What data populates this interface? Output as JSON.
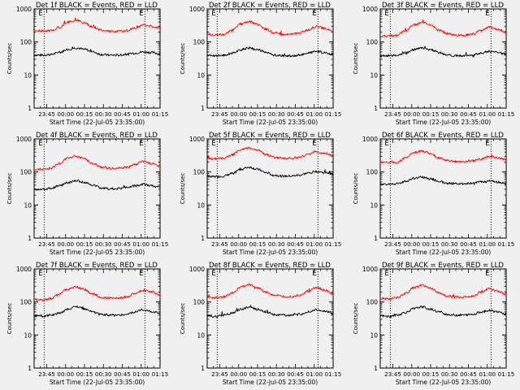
{
  "chart_data": [
    {
      "type": "line",
      "title": "Det 1f BLACK = Events, RED = LLD",
      "xlabel": "Start Time (22-Jul-05 23:35:00)",
      "ylabel": "Counts/sec",
      "x_tick_labels": [
        "23:45",
        "00:00",
        "00:15",
        "00:30",
        "00:45",
        "01:00",
        "01:15"
      ],
      "y_tick_labels": [
        "1",
        "10",
        "100",
        "1000"
      ],
      "yscale": "log",
      "ylim": [
        1,
        1000
      ],
      "xlim_minutes": [
        0,
        100
      ],
      "markers": [
        {
          "label": "E",
          "x_minute": 8
        },
        {
          "label": "E",
          "x_minute": 88
        }
      ],
      "series": [
        {
          "color": "#000000",
          "values": [
            40,
            40,
            42,
            48,
            60,
            66,
            60,
            50,
            42,
            40,
            40,
            42,
            46,
            50,
            48,
            44
          ]
        },
        {
          "color": "#ff0000",
          "values": [
            220,
            215,
            220,
            280,
            400,
            450,
            380,
            280,
            230,
            210,
            210,
            220,
            260,
            330,
            300,
            260
          ]
        }
      ]
    },
    {
      "type": "line",
      "title": "Det 2f BLACK = Events, RED = LLD",
      "xlabel": "Start Time (22-Jul-05 23:35:00)",
      "ylabel": "Counts/sec",
      "x_tick_labels": [
        "23:45",
        "00:00",
        "00:15",
        "00:30",
        "00:45",
        "01:00",
        "01:15"
      ],
      "y_tick_labels": [
        "1",
        "10",
        "100",
        "1000"
      ],
      "yscale": "log",
      "ylim": [
        1,
        1000
      ],
      "xlim_minutes": [
        0,
        100
      ],
      "markers": [
        {
          "label": "E",
          "x_minute": 8
        },
        {
          "label": "E",
          "x_minute": 88
        }
      ],
      "series": [
        {
          "color": "#000000",
          "values": [
            40,
            38,
            40,
            46,
            58,
            66,
            58,
            48,
            40,
            38,
            38,
            40,
            46,
            52,
            48,
            42
          ]
        },
        {
          "color": "#ff0000",
          "values": [
            170,
            160,
            170,
            230,
            350,
            410,
            340,
            240,
            190,
            170,
            170,
            185,
            230,
            300,
            260,
            210
          ]
        }
      ]
    },
    {
      "type": "line",
      "title": "Det 3f BLACK = Events, RED = LLD",
      "xlabel": "Start Time (22-Jul-05 23:35:00)",
      "ylabel": "Counts/sec",
      "x_tick_labels": [
        "23:45",
        "00:00",
        "00:15",
        "00:30",
        "00:45",
        "01:00",
        "01:15"
      ],
      "y_tick_labels": [
        "1",
        "10",
        "100",
        "1000"
      ],
      "yscale": "log",
      "ylim": [
        1,
        1000
      ],
      "xlim_minutes": [
        0,
        100
      ],
      "markers": [
        {
          "label": "E",
          "x_minute": 8
        },
        {
          "label": "E",
          "x_minute": 88
        }
      ],
      "series": [
        {
          "color": "#000000",
          "values": [
            38,
            38,
            40,
            46,
            58,
            66,
            58,
            48,
            40,
            38,
            38,
            40,
            46,
            52,
            48,
            42
          ]
        },
        {
          "color": "#ff0000",
          "values": [
            150,
            150,
            160,
            220,
            330,
            390,
            320,
            230,
            180,
            160,
            160,
            175,
            220,
            280,
            240,
            200
          ]
        }
      ]
    },
    {
      "type": "line",
      "title": "Det 4f BLACK = Events, RED = LLD",
      "xlabel": "Start Time (22-Jul-05 23:35:00)",
      "ylabel": "Counts/sec",
      "x_tick_labels": [
        "23:45",
        "00:00",
        "00:15",
        "00:30",
        "00:45",
        "01:00",
        "01:15"
      ],
      "y_tick_labels": [
        "1",
        "10",
        "100",
        "1000"
      ],
      "yscale": "log",
      "ylim": [
        1,
        1000
      ],
      "xlim_minutes": [
        0,
        100
      ],
      "markers": [
        {
          "label": "E",
          "x_minute": 8
        },
        {
          "label": "E",
          "x_minute": 88
        }
      ],
      "series": [
        {
          "color": "#000000",
          "values": [
            30,
            30,
            32,
            38,
            48,
            55,
            48,
            40,
            33,
            31,
            31,
            33,
            38,
            42,
            38,
            34
          ]
        },
        {
          "color": "#ff0000",
          "values": [
            120,
            120,
            130,
            180,
            260,
            300,
            250,
            180,
            140,
            130,
            130,
            140,
            170,
            210,
            180,
            150
          ]
        }
      ]
    },
    {
      "type": "line",
      "title": "Det 5f BLACK = Events, RED = LLD",
      "xlabel": "Start Time (22-Jul-05 23:35:00)",
      "ylabel": "Counts/sec",
      "x_tick_labels": [
        "23:45",
        "00:00",
        "00:15",
        "00:30",
        "00:45",
        "01:00",
        "01:15"
      ],
      "y_tick_labels": [
        "1",
        "10",
        "100",
        "1000"
      ],
      "yscale": "log",
      "ylim": [
        1,
        1000
      ],
      "xlim_minutes": [
        0,
        100
      ],
      "markers": [
        {
          "label": "E",
          "x_minute": 8
        },
        {
          "label": "E",
          "x_minute": 88
        }
      ],
      "series": [
        {
          "color": "#000000",
          "values": [
            75,
            72,
            75,
            90,
            120,
            140,
            120,
            95,
            80,
            75,
            75,
            80,
            92,
            105,
            95,
            85
          ]
        },
        {
          "color": "#ff0000",
          "values": [
            260,
            250,
            260,
            330,
            470,
            540,
            460,
            340,
            280,
            260,
            260,
            280,
            340,
            420,
            370,
            310
          ]
        }
      ]
    },
    {
      "type": "line",
      "title": "Det 6f BLACK = Events, RED = LLD",
      "xlabel": "Start Time (22-Jul-05 23:35:00)",
      "ylabel": "Counts/sec",
      "x_tick_labels": [
        "23:45",
        "00:00",
        "00:15",
        "00:30",
        "00:45",
        "01:00",
        "01:15"
      ],
      "y_tick_labels": [
        "1",
        "10",
        "100",
        "1000"
      ],
      "yscale": "log",
      "ylim": [
        1,
        1000
      ],
      "xlim_minutes": [
        0,
        100
      ],
      "markers": [
        {
          "label": "E",
          "x_minute": 8
        },
        {
          "label": "E",
          "x_minute": 88
        }
      ],
      "series": [
        {
          "color": "#000000",
          "values": [
            42,
            42,
            44,
            52,
            65,
            70,
            62,
            52,
            46,
            44,
            44,
            46,
            50,
            55,
            50,
            45
          ]
        },
        {
          "color": "#ff0000",
          "values": [
            200,
            195,
            200,
            260,
            380,
            430,
            360,
            270,
            220,
            205,
            205,
            215,
            250,
            300,
            270,
            230
          ]
        }
      ]
    },
    {
      "type": "line",
      "title": "Det 7f BLACK = Events, RED = LLD",
      "xlabel": "Start Time (22-Jul-05 23:35:00)",
      "ylabel": "Counts/sec",
      "x_tick_labels": [
        "23:45",
        "00:00",
        "00:15",
        "00:30",
        "00:45",
        "01:00",
        "01:15"
      ],
      "y_tick_labels": [
        "1",
        "10",
        "100",
        "1000"
      ],
      "yscale": "log",
      "ylim": [
        1,
        1000
      ],
      "xlim_minutes": [
        0,
        100
      ],
      "markers": [
        {
          "label": "E",
          "x_minute": 8
        },
        {
          "label": "E",
          "x_minute": 88
        }
      ],
      "series": [
        {
          "color": "#000000",
          "values": [
            38,
            37,
            40,
            46,
            60,
            72,
            62,
            50,
            42,
            40,
            40,
            42,
            50,
            58,
            52,
            46
          ]
        },
        {
          "color": "#ff0000",
          "values": [
            120,
            115,
            125,
            170,
            250,
            290,
            240,
            175,
            140,
            130,
            130,
            140,
            180,
            230,
            200,
            160
          ]
        }
      ]
    },
    {
      "type": "line",
      "title": "Det 8f BLACK = Events, RED = LLD",
      "xlabel": "Start Time (22-Jul-05 23:35:00)",
      "ylabel": "Counts/sec",
      "x_tick_labels": [
        "23:45",
        "00:00",
        "00:15",
        "00:30",
        "00:45",
        "01:00",
        "01:15"
      ],
      "y_tick_labels": [
        "1",
        "10",
        "100",
        "1000"
      ],
      "yscale": "log",
      "ylim": [
        1,
        1000
      ],
      "xlim_minutes": [
        0,
        100
      ],
      "markers": [
        {
          "label": "E",
          "x_minute": 8
        },
        {
          "label": "E",
          "x_minute": 88
        }
      ],
      "series": [
        {
          "color": "#000000",
          "values": [
            38,
            36,
            40,
            46,
            60,
            70,
            60,
            50,
            42,
            40,
            40,
            42,
            50,
            58,
            52,
            45
          ]
        },
        {
          "color": "#ff0000",
          "values": [
            140,
            135,
            145,
            190,
            280,
            330,
            270,
            200,
            160,
            145,
            145,
            160,
            210,
            270,
            230,
            180
          ]
        }
      ]
    },
    {
      "type": "line",
      "title": "Det 9f BLACK = Events, RED = LLD",
      "xlabel": "Start Time (22-Jul-05 23:35:00)",
      "ylabel": "Counts/sec",
      "x_tick_labels": [
        "23:45",
        "00:00",
        "00:15",
        "00:30",
        "00:45",
        "01:00",
        "01:15"
      ],
      "y_tick_labels": [
        "1",
        "10",
        "100",
        "1000"
      ],
      "yscale": "log",
      "ylim": [
        1,
        1000
      ],
      "xlim_minutes": [
        0,
        100
      ],
      "markers": [
        {
          "label": "E",
          "x_minute": 8
        },
        {
          "label": "E",
          "x_minute": 88
        }
      ],
      "series": [
        {
          "color": "#000000",
          "values": [
            38,
            36,
            40,
            48,
            62,
            72,
            60,
            50,
            42,
            40,
            40,
            42,
            50,
            56,
            50,
            44
          ]
        },
        {
          "color": "#ff0000",
          "values": [
            130,
            125,
            135,
            180,
            270,
            320,
            260,
            190,
            150,
            140,
            140,
            150,
            200,
            250,
            210,
            170
          ]
        }
      ]
    }
  ]
}
